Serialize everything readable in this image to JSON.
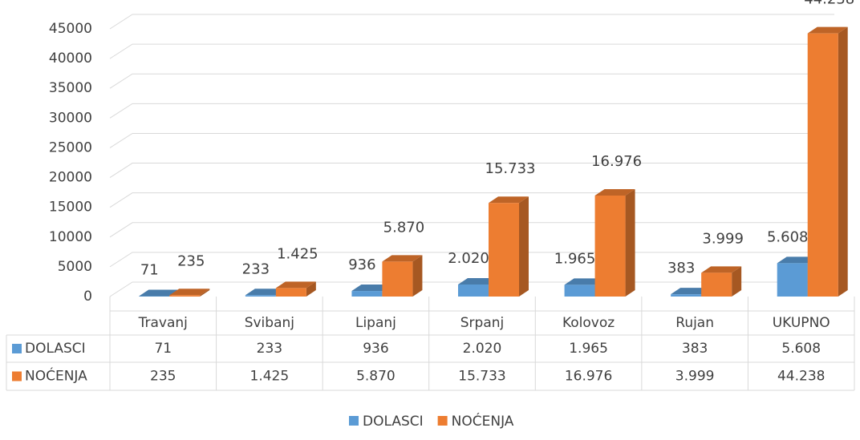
{
  "chart_data": {
    "type": "bar3d",
    "categories": [
      "Travanj",
      "Svibanj",
      "Lipanj",
      "Srpanj",
      "Kolovoz",
      "Rujan",
      "UKUPNO"
    ],
    "series": [
      {
        "name": "DOLASCI",
        "color": "#5b9bd5",
        "values": [
          71,
          233,
          936,
          2020,
          1965,
          383,
          5608
        ],
        "value_labels": [
          "71",
          "233",
          "936",
          "2.020",
          "1.965",
          "383",
          "5.608"
        ]
      },
      {
        "name": "NOĆENJA",
        "color": "#ed7d31",
        "values": [
          235,
          1425,
          5870,
          15733,
          16976,
          3999,
          44238
        ],
        "value_labels": [
          "235",
          "1.425",
          "5.870",
          "15.733",
          "16.976",
          "3.999",
          "44.238"
        ]
      }
    ],
    "ylim": [
      0,
      45000
    ],
    "yticks": [
      0,
      5000,
      10000,
      15000,
      20000,
      25000,
      30000,
      35000,
      40000,
      45000
    ],
    "grid": true,
    "legend": "bottom"
  }
}
